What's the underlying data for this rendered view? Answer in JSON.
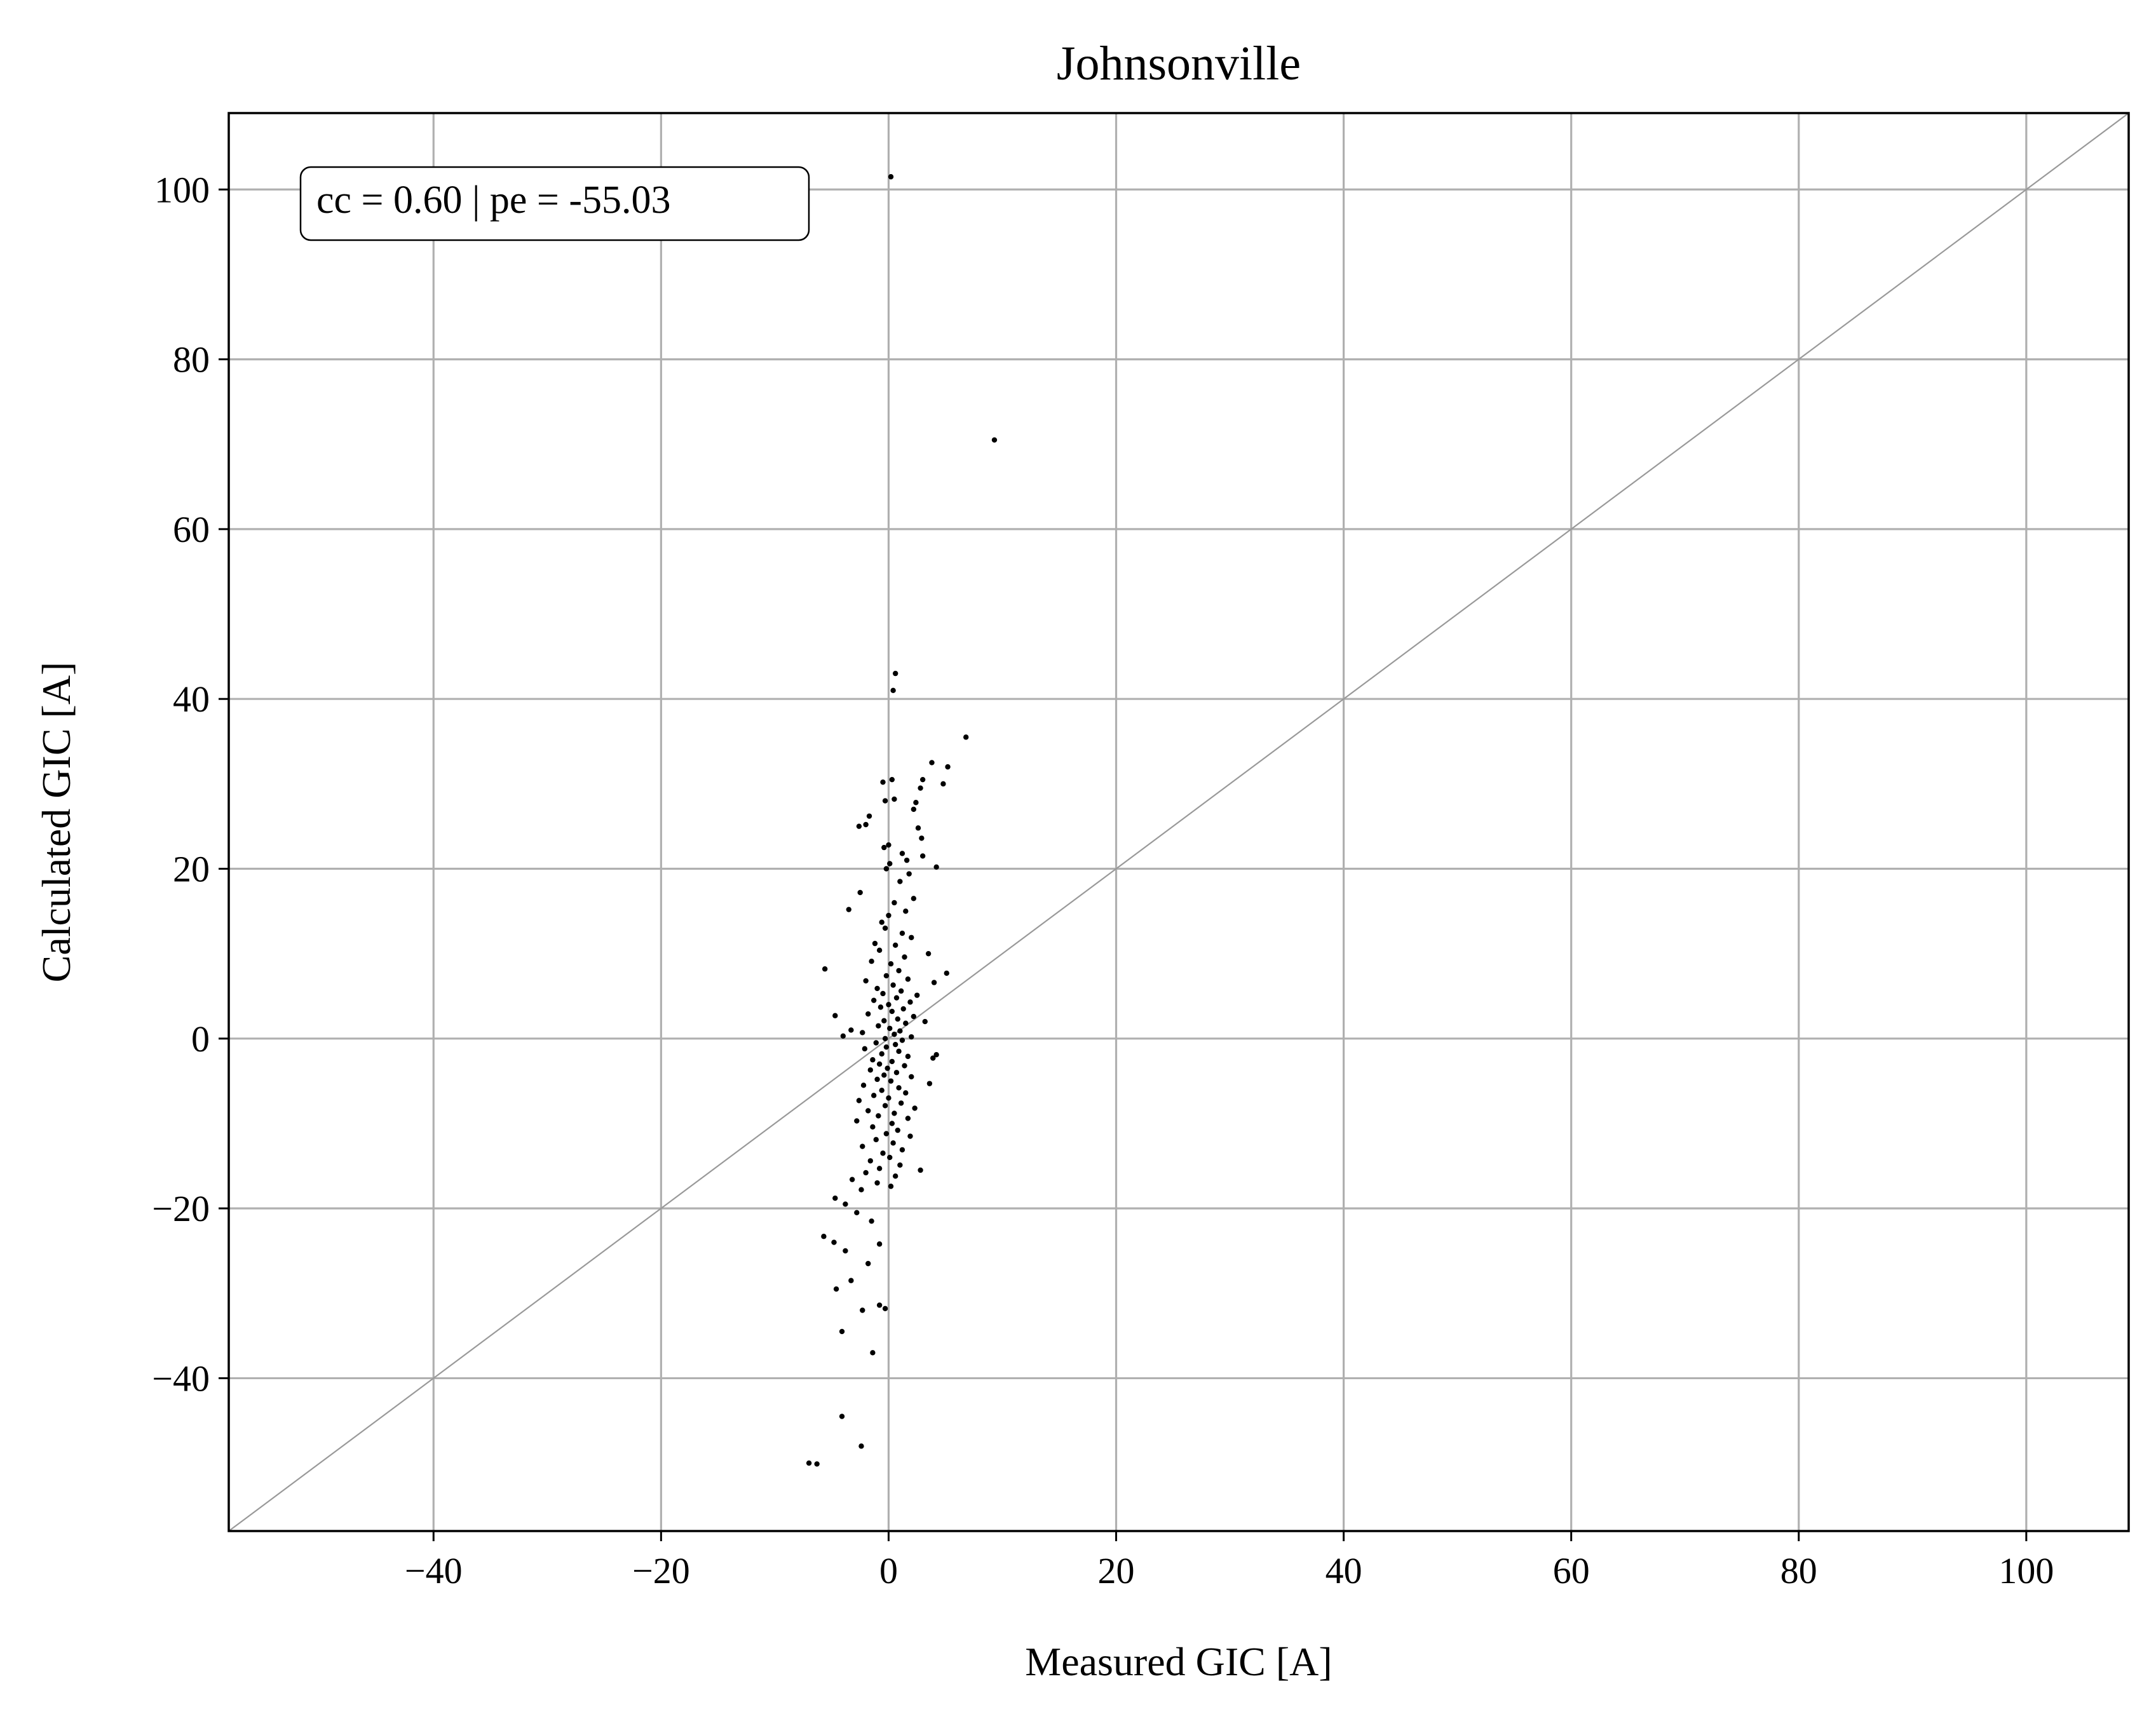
{
  "chart_data": {
    "type": "scatter",
    "title": "Johnsonville",
    "xlabel": "Measured GIC [A]",
    "ylabel": "Calculated GIC [A]",
    "xlim": [
      -58,
      109
    ],
    "ylim": [
      -58,
      109
    ],
    "xticks": [
      -40,
      -20,
      0,
      20,
      40,
      60,
      80,
      100
    ],
    "yticks": [
      -40,
      -20,
      0,
      20,
      40,
      60,
      80,
      100
    ],
    "xtick_labels": [
      "−40",
      "−20",
      "0",
      "20",
      "40",
      "60",
      "80",
      "100"
    ],
    "ytick_labels": [
      "−40",
      "−20",
      "0",
      "20",
      "40",
      "60",
      "80",
      "100"
    ],
    "grid": true,
    "reference_line": "y = x",
    "annotation": "cc = 0.60 | pe = -55.03",
    "annotation_position": "top-left",
    "marker_color": "#000000",
    "grid_color": "#b0b0b0",
    "reference_line_color": "#999999",
    "points": [
      [
        0.2,
        101.5
      ],
      [
        9.3,
        70.5
      ],
      [
        0.6,
        43
      ],
      [
        0.4,
        41
      ],
      [
        6.8,
        35.5
      ],
      [
        3.8,
        32.5
      ],
      [
        5.2,
        32
      ],
      [
        3.0,
        30.5
      ],
      [
        0.3,
        30.5
      ],
      [
        -0.5,
        30.2
      ],
      [
        4.8,
        30
      ],
      [
        2.8,
        29.5
      ],
      [
        0.5,
        28.2
      ],
      [
        -0.3,
        28
      ],
      [
        2.4,
        27.8
      ],
      [
        2.2,
        27
      ],
      [
        -1.7,
        26.2
      ],
      [
        -2.6,
        25
      ],
      [
        -2.0,
        25.2
      ],
      [
        2.6,
        24.8
      ],
      [
        2.9,
        23.6
      ],
      [
        0.0,
        22.8
      ],
      [
        -0.4,
        22.5
      ],
      [
        1.2,
        21.8
      ],
      [
        3.0,
        21.5
      ],
      [
        1.6,
        21
      ],
      [
        0.1,
        20.6
      ],
      [
        4.2,
        20.2
      ],
      [
        -0.2,
        20
      ],
      [
        1.8,
        19.4
      ],
      [
        1.0,
        18.5
      ],
      [
        -2.5,
        17.2
      ],
      [
        2.2,
        16.5
      ],
      [
        0.5,
        16.0
      ],
      [
        -3.5,
        15.2
      ],
      [
        1.5,
        15.0
      ],
      [
        0.0,
        14.5
      ],
      [
        -0.6,
        13.7
      ],
      [
        -0.3,
        13.0
      ],
      [
        1.2,
        12.4
      ],
      [
        2.0,
        11.9
      ],
      [
        -1.2,
        11.2
      ],
      [
        0.6,
        11.0
      ],
      [
        -0.8,
        10.4
      ],
      [
        3.5,
        10.0
      ],
      [
        1.4,
        9.6
      ],
      [
        -1.5,
        9.1
      ],
      [
        0.2,
        8.8
      ],
      [
        -5.6,
        8.2
      ],
      [
        0.9,
        8.0
      ],
      [
        5.1,
        7.7
      ],
      [
        -0.2,
        7.4
      ],
      [
        1.7,
        7.0
      ],
      [
        -2.0,
        6.8
      ],
      [
        4.0,
        6.6
      ],
      [
        0.4,
        6.3
      ],
      [
        -1.0,
        5.9
      ],
      [
        1.1,
        5.6
      ],
      [
        -0.5,
        5.3
      ],
      [
        2.5,
        5.1
      ],
      [
        0.7,
        4.8
      ],
      [
        -1.3,
        4.5
      ],
      [
        1.9,
        4.3
      ],
      [
        0.0,
        4.0
      ],
      [
        -0.7,
        3.7
      ],
      [
        1.3,
        3.5
      ],
      [
        0.3,
        3.2
      ],
      [
        -1.8,
        2.9
      ],
      [
        -4.7,
        2.7
      ],
      [
        2.2,
        2.6
      ],
      [
        0.8,
        2.3
      ],
      [
        -0.4,
        2.1
      ],
      [
        3.2,
        2.0
      ],
      [
        1.5,
        1.8
      ],
      [
        -0.9,
        1.5
      ],
      [
        0.1,
        1.2
      ],
      [
        -3.3,
        1.0
      ],
      [
        1.0,
        0.9
      ],
      [
        -2.3,
        0.7
      ],
      [
        0.5,
        0.5
      ],
      [
        -4.0,
        0.3
      ],
      [
        2.0,
        0.2
      ],
      [
        -0.3,
        0.0
      ],
      [
        1.2,
        -0.2
      ],
      [
        -1.1,
        -0.5
      ],
      [
        0.6,
        -0.7
      ],
      [
        -0.2,
        -1.0
      ],
      [
        -2.1,
        -1.2
      ],
      [
        0.9,
        -1.5
      ],
      [
        -0.6,
        -1.8
      ],
      [
        4.2,
        -1.9
      ],
      [
        1.7,
        -2.1
      ],
      [
        3.9,
        -2.3
      ],
      [
        -1.4,
        -2.5
      ],
      [
        0.3,
        -2.7
      ],
      [
        -0.8,
        -3.0
      ],
      [
        1.4,
        -3.2
      ],
      [
        -0.1,
        -3.5
      ],
      [
        -1.6,
        -3.7
      ],
      [
        0.7,
        -4.0
      ],
      [
        -0.4,
        -4.3
      ],
      [
        2.0,
        -4.5
      ],
      [
        -1.0,
        -4.8
      ],
      [
        0.2,
        -5.0
      ],
      [
        3.6,
        -5.3
      ],
      [
        -2.2,
        -5.5
      ],
      [
        0.9,
        -5.8
      ],
      [
        -0.6,
        -6.1
      ],
      [
        1.5,
        -6.4
      ],
      [
        -1.3,
        -6.7
      ],
      [
        0.0,
        -7.0
      ],
      [
        -2.6,
        -7.3
      ],
      [
        1.1,
        -7.6
      ],
      [
        -0.3,
        -7.9
      ],
      [
        2.3,
        -8.2
      ],
      [
        -1.8,
        -8.5
      ],
      [
        0.5,
        -8.8
      ],
      [
        -0.9,
        -9.1
      ],
      [
        1.7,
        -9.4
      ],
      [
        -2.8,
        -9.7
      ],
      [
        0.3,
        -10.0
      ],
      [
        -1.4,
        -10.4
      ],
      [
        0.8,
        -10.8
      ],
      [
        -0.2,
        -11.2
      ],
      [
        1.9,
        -11.5
      ],
      [
        -1.1,
        -11.9
      ],
      [
        0.4,
        -12.3
      ],
      [
        -2.3,
        -12.7
      ],
      [
        1.2,
        -13.1
      ],
      [
        -0.5,
        -13.5
      ],
      [
        0.1,
        -14.0
      ],
      [
        -1.6,
        -14.4
      ],
      [
        1.0,
        -14.9
      ],
      [
        -0.8,
        -15.3
      ],
      [
        2.8,
        -15.5
      ],
      [
        -2.0,
        -15.8
      ],
      [
        0.6,
        -16.2
      ],
      [
        -3.2,
        -16.6
      ],
      [
        -1.0,
        -17.0
      ],
      [
        0.2,
        -17.4
      ],
      [
        -2.4,
        -17.8
      ],
      [
        -4.7,
        -18.8
      ],
      [
        -3.8,
        -19.5
      ],
      [
        -2.8,
        -20.5
      ],
      [
        -1.5,
        -21.5
      ],
      [
        -5.7,
        -23.3
      ],
      [
        -4.8,
        -24.0
      ],
      [
        -0.8,
        -24.2
      ],
      [
        -3.8,
        -25.0
      ],
      [
        -1.8,
        -26.5
      ],
      [
        -3.3,
        -28.5
      ],
      [
        -4.6,
        -29.5
      ],
      [
        -0.8,
        -31.4
      ],
      [
        -0.3,
        -31.8
      ],
      [
        -2.3,
        -32.0
      ],
      [
        -4.1,
        -34.5
      ],
      [
        -1.4,
        -37.0
      ],
      [
        -4.1,
        -44.5
      ],
      [
        -2.4,
        -48.0
      ],
      [
        -7.0,
        -50.0
      ],
      [
        -6.3,
        -50.1
      ]
    ]
  }
}
